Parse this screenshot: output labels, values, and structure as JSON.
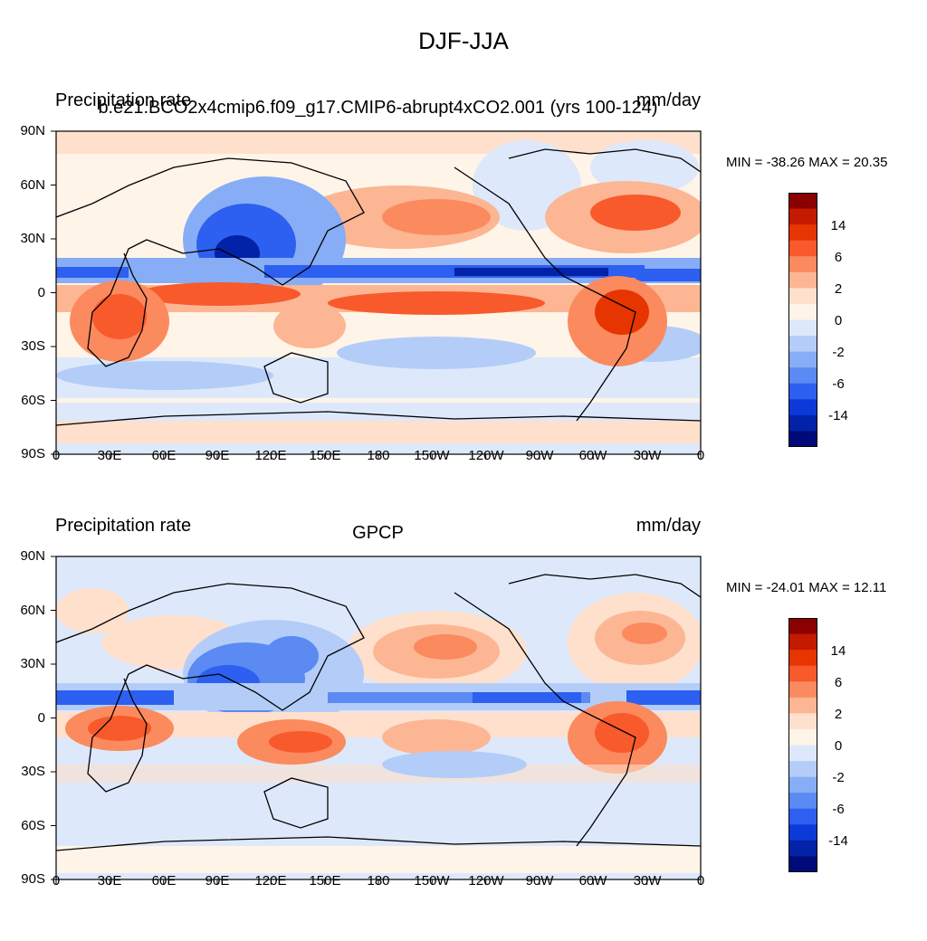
{
  "title": "DJF-JJA",
  "colorbar": {
    "labels": [
      "14",
      "6",
      "2",
      "0",
      "-2",
      "-6",
      "-14"
    ],
    "colors": [
      "#8b0000",
      "#c41a00",
      "#e63500",
      "#f85a2c",
      "#fb8a5e",
      "#fcb693",
      "#fee0cc",
      "#fff4e8",
      "#dde9fb",
      "#b3cdf8",
      "#86adf5",
      "#5a8af2",
      "#2d5ff0",
      "#0c3ad8",
      "#0222a8",
      "#000a78"
    ]
  },
  "x_ticks": [
    "0",
    "30E",
    "60E",
    "90E",
    "120E",
    "150E",
    "180",
    "150W",
    "120W",
    "90W",
    "60W",
    "30W",
    "0"
  ],
  "y_ticks": [
    "90N",
    "60N",
    "30N",
    "0",
    "30S",
    "60S",
    "90S"
  ],
  "panels": [
    {
      "left_title": "Precipitation rate",
      "center_title": "b.e21.BCO2x4cmip6.f09_g17.CMIP6-abrupt4xCO2.001 (yrs 100-124)",
      "units": "mm/day",
      "minmax": "MIN = -38.26 MAX =  20.35"
    },
    {
      "left_title": "Precipitation rate",
      "center_title": "GPCP",
      "units": "mm/day",
      "minmax": "MIN = -24.01 MAX =  12.11"
    }
  ]
}
